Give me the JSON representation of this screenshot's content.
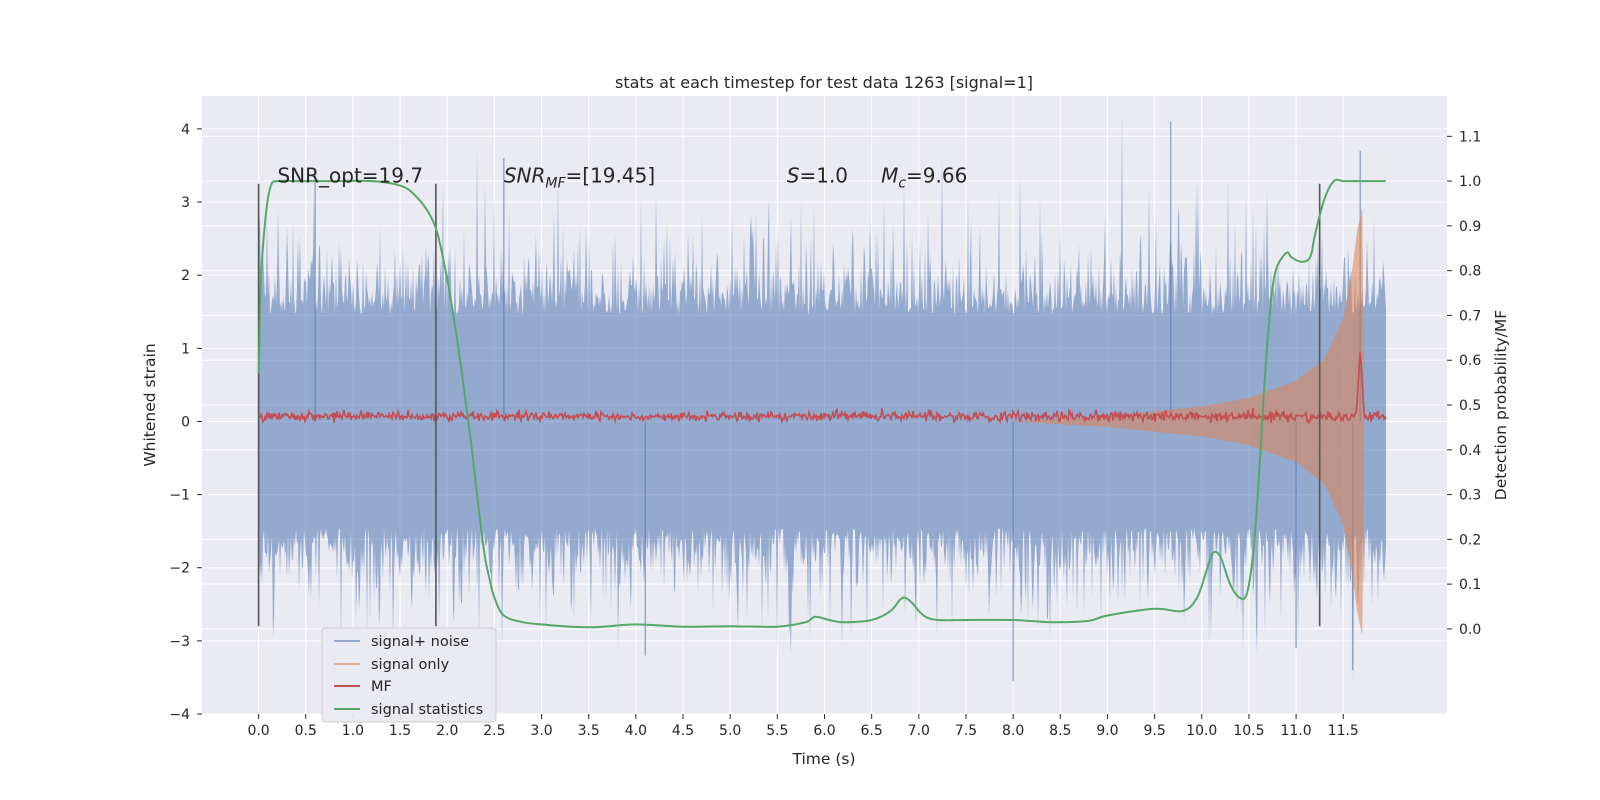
{
  "chart_data": {
    "type": "line",
    "title": "stats at each timestep for test data 1263 [signal=1]",
    "xlabel": "Time (s)",
    "ylabel_left": "Whitened strain",
    "ylabel_right": "Detection probability/MF",
    "xlim": [
      -0.6,
      12.6
    ],
    "ylim_left": [
      -4.0,
      4.45
    ],
    "ylim_right": [
      -0.19,
      1.19
    ],
    "x_ticks": [
      0.0,
      0.5,
      1.0,
      1.5,
      2.0,
      2.5,
      3.0,
      3.5,
      4.0,
      4.5,
      5.0,
      5.5,
      6.0,
      6.5,
      7.0,
      7.5,
      8.0,
      8.5,
      9.0,
      9.5,
      10.0,
      10.5,
      11.0,
      11.5
    ],
    "x_tick_labels": [
      "0.0",
      "0.5",
      "1.0",
      "1.5",
      "2.0",
      "2.5",
      "3.0",
      "3.5",
      "4.0",
      "4.5",
      "5.0",
      "5.5",
      "6.0",
      "6.5",
      "7.0",
      "7.5",
      "8.0",
      "8.5",
      "9.0",
      "9.5",
      "10.0",
      "10.5",
      "11.0",
      "11.5"
    ],
    "y_left_ticks": [
      -4,
      -3,
      -2,
      -1,
      0,
      1,
      2,
      3,
      4
    ],
    "y_left_tick_labels": [
      "−4",
      "−3",
      "−2",
      "−1",
      "0",
      "1",
      "2",
      "3",
      "4"
    ],
    "y_right_ticks": [
      0.0,
      0.1,
      0.2,
      0.3,
      0.4,
      0.5,
      0.6,
      0.7,
      0.8,
      0.9,
      1.0,
      1.1
    ],
    "y_right_tick_labels": [
      "0.0",
      "0.1",
      "0.2",
      "0.3",
      "0.4",
      "0.5",
      "0.6",
      "0.7",
      "0.8",
      "0.9",
      "1.0",
      "1.1"
    ],
    "grid": true,
    "legend_placement": "lower-left",
    "colors": {
      "background": "#eaeaf2",
      "grid": "#ffffff",
      "noise": "#4c72b0",
      "signal": "#dd8452",
      "mf": "#c44e52",
      "stats": "#55a868",
      "vline": "#555555"
    },
    "series": [
      {
        "name": "signal+ noise",
        "axis": "left",
        "style": "dense-noise",
        "t_range": [
          0.0,
          11.95
        ],
        "core_amplitude": 1.45,
        "max": 4.1,
        "min": -3.55
      },
      {
        "name": "signal only",
        "axis": "left",
        "style": "chirp-envelope",
        "x": [
          8.0,
          9.0,
          10.0,
          10.5,
          11.0,
          11.3,
          11.5,
          11.6,
          11.65,
          11.7,
          11.72
        ],
        "envelope": [
          0.0,
          0.07,
          0.2,
          0.32,
          0.55,
          0.85,
          1.4,
          2.1,
          2.6,
          2.9,
          0.0
        ]
      },
      {
        "name": "MF",
        "axis": "left",
        "style": "noisy-flat",
        "t_range": [
          0.0,
          11.95
        ],
        "mean": 0.07,
        "jitter": 0.06,
        "peak": {
          "x": 11.68,
          "y": 1.0
        }
      },
      {
        "name": "signal statistics",
        "axis": "right",
        "x": [
          0.0,
          0.03,
          0.08,
          0.13,
          0.2,
          0.4,
          0.8,
          1.2,
          1.5,
          1.65,
          1.8,
          1.9,
          2.0,
          2.08,
          2.15,
          2.2,
          2.25,
          2.3,
          2.35,
          2.4,
          2.45,
          2.5,
          2.6,
          2.8,
          3.0,
          3.3,
          3.6,
          4.0,
          4.5,
          5.0,
          5.5,
          5.8,
          5.9,
          6.05,
          6.2,
          6.5,
          6.7,
          6.8,
          6.85,
          6.92,
          7.05,
          7.2,
          7.5,
          8.0,
          8.4,
          8.8,
          9.0,
          9.5,
          9.8,
          9.95,
          10.05,
          10.12,
          10.2,
          10.3,
          10.4,
          10.48,
          10.55,
          10.6,
          10.65,
          10.7,
          10.75,
          10.8,
          10.9,
          10.95,
          11.05,
          11.15,
          11.2,
          11.3,
          11.4,
          11.5,
          11.6,
          11.8,
          11.95
        ],
        "y": [
          0.57,
          0.8,
          0.93,
          0.99,
          1.0,
          1.0,
          1.0,
          1.0,
          0.99,
          0.97,
          0.93,
          0.88,
          0.78,
          0.68,
          0.58,
          0.5,
          0.42,
          0.33,
          0.24,
          0.16,
          0.11,
          0.07,
          0.03,
          0.015,
          0.01,
          0.005,
          0.004,
          0.01,
          0.005,
          0.006,
          0.005,
          0.015,
          0.027,
          0.02,
          0.015,
          0.02,
          0.04,
          0.065,
          0.07,
          0.06,
          0.03,
          0.02,
          0.02,
          0.02,
          0.015,
          0.018,
          0.03,
          0.045,
          0.04,
          0.07,
          0.13,
          0.17,
          0.16,
          0.1,
          0.07,
          0.08,
          0.18,
          0.32,
          0.5,
          0.65,
          0.76,
          0.81,
          0.84,
          0.83,
          0.82,
          0.83,
          0.88,
          0.96,
          1.0,
          1.0,
          1.0,
          1.0,
          1.0
        ]
      }
    ],
    "vertical_lines": [
      0.0,
      1.88,
      11.25
    ],
    "vertical_line_range": [
      -2.8,
      3.25
    ],
    "annotations": [
      {
        "text": "SNR_opt=19.7",
        "x": 0.2,
        "y": 3.27
      },
      {
        "text": "SNR_MF=[19.45]",
        "x": 2.6,
        "y": 3.27
      },
      {
        "text": "S=1.0",
        "x": 5.6,
        "y": 3.27
      },
      {
        "text": "M_c=9.66",
        "x": 6.6,
        "y": 3.27
      }
    ]
  }
}
